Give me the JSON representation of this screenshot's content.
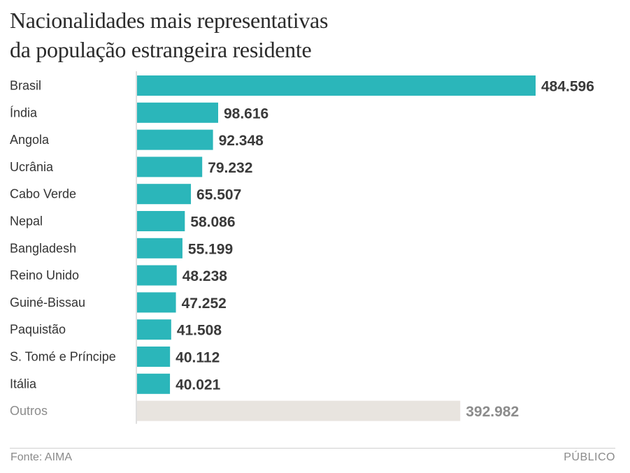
{
  "title": {
    "line1": "Nacionalidades mais representativas",
    "line2": "da população estrangeira residente"
  },
  "footer": {
    "source": "Fonte: AIMA",
    "brand": "PÚBLICO"
  },
  "colors": {
    "bar": "#2bb6ba",
    "bar_other": "#e8e4df",
    "axis": "#bfbfbf"
  },
  "chart_data": {
    "type": "bar",
    "orientation": "horizontal",
    "title": "Nacionalidades mais representativas da população estrangeira residente",
    "xlabel": "",
    "ylabel": "",
    "xlim": [
      0,
      484596
    ],
    "categories": [
      "Brasil",
      "Índia",
      "Angola",
      "Ucrânia",
      "Cabo Verde",
      "Nepal",
      "Bangladesh",
      "Reino Unido",
      "Guiné-Bissau",
      "Paquistão",
      "S. Tomé e Príncipe",
      "Itália",
      "Outros"
    ],
    "values": [
      484596,
      98616,
      92348,
      79232,
      65507,
      58086,
      55199,
      48238,
      47252,
      41508,
      40112,
      40021,
      392982
    ],
    "value_labels": [
      "484.596",
      "98.616",
      "92.348",
      "79.232",
      "65.507",
      "58.086",
      "55.199",
      "48.238",
      "47.252",
      "41.508",
      "40.112",
      "40.021",
      "392.982"
    ],
    "highlight_last_as_other": true
  }
}
